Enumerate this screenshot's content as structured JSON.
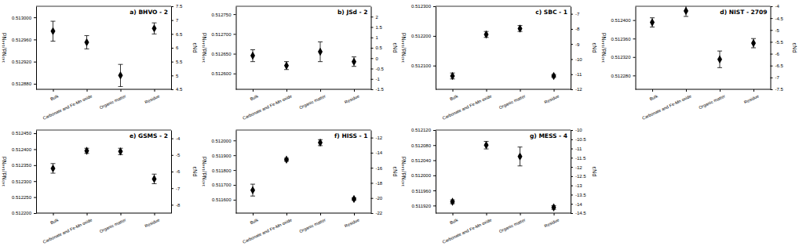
{
  "chart_data": [
    {
      "type": "scatter",
      "title": "a) BHVO - 2",
      "ylabel": "¹⁴³Nd/¹⁴⁴Nd",
      "y2label": "εNd",
      "color": "#000000",
      "marker": "diamond",
      "categories": [
        "Bulk",
        "Carbonate and Fe-Mn oxide",
        "Organic matter",
        "Residue"
      ],
      "values": [
        0.512975,
        0.512955,
        0.512895,
        0.51298
      ],
      "errors": [
        1.8e-05,
        1.2e-05,
        2e-05,
        1e-05
      ],
      "ylim": [
        0.51287,
        0.51302
      ],
      "yticks": [
        {
          "value": 0.51288,
          "label": "0.512880"
        },
        {
          "value": 0.51292,
          "label": "0.512920"
        },
        {
          "value": 0.51296,
          "label": "0.512960"
        },
        {
          "value": 0.513,
          "label": "0.513000"
        }
      ],
      "y2lim": [
        4.5,
        7.5
      ],
      "y2ticks": [
        4.5,
        5,
        5.5,
        6,
        6.5,
        7,
        7.5
      ]
    },
    {
      "type": "scatter",
      "title": "b) JSd - 2",
      "ylabel": "¹⁴³Nd/¹⁴⁴Nd",
      "y2label": "εNd",
      "color": "#000000",
      "marker": "diamond",
      "categories": [
        "Bulk",
        "Carbonate and Fe-Mn oxide",
        "Organic matter",
        "Residue"
      ],
      "values": [
        0.512645,
        0.51262,
        0.512655,
        0.51263
      ],
      "errors": [
        1.5e-05,
        1e-05,
        2.5e-05,
        1.2e-05
      ],
      "ylim": [
        0.51256,
        0.51277
      ],
      "yticks": [
        {
          "value": 0.5126,
          "label": "0.512600"
        },
        {
          "value": 0.51265,
          "label": "0.512650"
        },
        {
          "value": 0.5127,
          "label": "0.512700"
        },
        {
          "value": 0.51275,
          "label": "0.512750"
        }
      ],
      "y2lim": [
        -1.5,
        2.5
      ],
      "y2ticks": [
        -1.5,
        -1,
        -0.5,
        0,
        0.5,
        1,
        1.5,
        2
      ]
    },
    {
      "type": "scatter",
      "title": "c) SBC - 1",
      "ylabel": "¹⁴³Nd/¹⁴⁴Nd",
      "y2label": "εNd",
      "color": "#000000",
      "marker": "diamond",
      "categories": [
        "Bulk",
        "Carbonate and Fe-Mn oxide",
        "Organic matter",
        "Residue"
      ],
      "values": [
        0.512065,
        0.512205,
        0.512225,
        0.512065
      ],
      "errors": [
        1e-05,
        1e-05,
        1e-05,
        5e-06
      ],
      "ylim": [
        0.51202,
        0.5123
      ],
      "yticks": [
        {
          "value": 0.5121,
          "label": "0.512100"
        },
        {
          "value": 0.5122,
          "label": "0.512200"
        },
        {
          "value": 0.5123,
          "label": "0.512300"
        }
      ],
      "y2lim": [
        -12,
        -6.5
      ],
      "y2ticks": [
        -12,
        -11,
        -10,
        -9,
        -8,
        -7
      ]
    },
    {
      "type": "scatter",
      "title": "d) NIST - 2709",
      "ylabel": "¹⁴³Nd/¹⁴⁴Nd",
      "y2label": "εNd",
      "color": "#000000",
      "marker": "diamond",
      "categories": [
        "Bulk",
        "Carbonate and Fe-Mn oxide",
        "Organic matter",
        "Residue"
      ],
      "values": [
        0.512395,
        0.51242,
        0.512315,
        0.51235
      ],
      "errors": [
        1e-05,
        1.2e-05,
        1.8e-05,
        1e-05
      ],
      "ylim": [
        0.51225,
        0.51243
      ],
      "yticks": [
        {
          "value": 0.51228,
          "label": "0.512280"
        },
        {
          "value": 0.51232,
          "label": "0.512320"
        },
        {
          "value": 0.51236,
          "label": "0.512360"
        },
        {
          "value": 0.5124,
          "label": "0.512400"
        }
      ],
      "y2lim": [
        -7.5,
        -4
      ],
      "y2ticks": [
        -7.5,
        -7,
        -6.5,
        -6,
        -5.5,
        -5,
        -4.5,
        -4
      ]
    },
    {
      "type": "scatter",
      "title": "e) GSMS - 2",
      "ylabel": "¹⁴³Nd/¹⁴⁴Nd",
      "y2label": "εNd",
      "color": "#000000",
      "marker": "diamond",
      "categories": [
        "Bulk",
        "Carbonate and Fe-Mn oxide",
        "Organic matter",
        "Residue"
      ],
      "values": [
        0.51234,
        0.512395,
        0.512393,
        0.512307
      ],
      "errors": [
        1.5e-05,
        8e-06,
        1e-05,
        1.5e-05
      ],
      "ylim": [
        0.5122,
        0.51246
      ],
      "yticks": [
        {
          "value": 0.5122,
          "label": "0.512200"
        },
        {
          "value": 0.51225,
          "label": "0.512250"
        },
        {
          "value": 0.5123,
          "label": "0.512300"
        },
        {
          "value": 0.51235,
          "label": "0.512350"
        },
        {
          "value": 0.5124,
          "label": "0.512400"
        },
        {
          "value": 0.51245,
          "label": "0.512450"
        }
      ],
      "y2lim": [
        -8.5,
        -3.5
      ],
      "y2ticks": [
        -8,
        -7,
        -6,
        -5,
        -4
      ]
    },
    {
      "type": "scatter",
      "title": "f) HISS - 1",
      "ylabel": "¹⁴³Nd/¹⁴⁴Nd",
      "y2label": "εNd",
      "color": "#000000",
      "marker": "diamond",
      "categories": [
        "Bulk",
        "Carbonate and Fe-Mn oxide",
        "Organic matter",
        "Residue"
      ],
      "values": [
        0.511665,
        0.51187,
        0.511985,
        0.511605
      ],
      "errors": [
        4e-05,
        1e-05,
        2e-05,
        8e-06
      ],
      "ylim": [
        0.51151,
        0.51207
      ],
      "yticks": [
        {
          "value": 0.5116,
          "label": "0.511600"
        },
        {
          "value": 0.5117,
          "label": "0.511700"
        },
        {
          "value": 0.5118,
          "label": "0.511800"
        },
        {
          "value": 0.5119,
          "label": "0.511900"
        },
        {
          "value": 0.512,
          "label": "0.512000"
        }
      ],
      "y2lim": [
        -22,
        -11
      ],
      "y2ticks": [
        -22,
        -20,
        -18,
        -16,
        -14,
        -12
      ]
    },
    {
      "type": "scatter",
      "title": "g) MESS - 4",
      "ylabel": "¹⁴³Nd/¹⁴⁴Nd",
      "y2label": "εNd",
      "color": "#000000",
      "marker": "diamond",
      "categories": [
        "Bulk",
        "Carbonate and Fe-Mn oxide",
        "Organic matter",
        "Residue"
      ],
      "values": [
        0.51193,
        0.51208,
        0.51205,
        0.511915
      ],
      "errors": [
        5e-06,
        1e-05,
        2.5e-05,
        5e-06
      ],
      "ylim": [
        0.5119,
        0.51212
      ],
      "yticks": [
        {
          "value": 0.51192,
          "label": "0.511920"
        },
        {
          "value": 0.51196,
          "label": "0.511960"
        },
        {
          "value": 0.512,
          "label": "0.512000"
        },
        {
          "value": 0.51204,
          "label": "0.512040"
        },
        {
          "value": 0.51208,
          "label": "0.512080"
        },
        {
          "value": 0.51212,
          "label": "0.512120"
        }
      ],
      "y2lim": [
        -14.5,
        -10
      ],
      "y2ticks": [
        -14.5,
        -14,
        -13.5,
        -13,
        -12.5,
        -12,
        -11.5,
        -11,
        -10.5,
        -10
      ]
    }
  ]
}
